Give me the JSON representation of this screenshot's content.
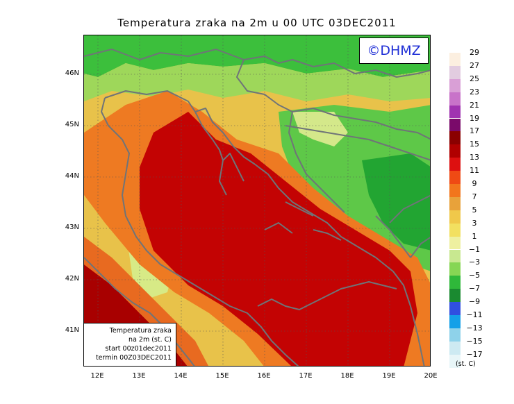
{
  "title": "Temperatura zraka na 2m u 00 UTC 03DEC2011",
  "copyright": "©DHMZ",
  "info_box": {
    "line1": "Temperatura zraka",
    "line2": "na 2m (st. C)",
    "line3": "start 00z01dec2011",
    "line4": "termin 00Z03DEC2011"
  },
  "axes": {
    "lat_ticks": [
      "46N",
      "45N",
      "44N",
      "43N",
      "42N",
      "41N"
    ],
    "lon_ticks": [
      "12E",
      "13E",
      "14E",
      "15E",
      "16E",
      "17E",
      "18E",
      "19E",
      "20E"
    ]
  },
  "legend": {
    "unit": "(st. C)",
    "labels": [
      "29",
      "27",
      "25",
      "23",
      "21",
      "19",
      "17",
      "15",
      "13",
      "11",
      "9",
      "7",
      "5",
      "3",
      "1",
      "−1",
      "−3",
      "−5",
      "−7",
      "−9",
      "−11",
      "−13",
      "−15",
      "−17"
    ],
    "colors": [
      "#fcefe0",
      "#e2cce0",
      "#d99fd6",
      "#c873c9",
      "#a033b0",
      "#7a0a6a",
      "#8a0000",
      "#b00000",
      "#dd1010",
      "#ef4a14",
      "#f2761c",
      "#e8a23a",
      "#f0c84a",
      "#f2e060",
      "#eef0a0",
      "#c8e890",
      "#86d654",
      "#2fb83a",
      "#1a8a30",
      "#3050e0",
      "#14a0e8",
      "#8ed2ea",
      "#cdeaf2",
      "#e8f6f8"
    ]
  },
  "colors": {
    "sea_warm": "#c30303",
    "coast_line": "#6f7478"
  }
}
